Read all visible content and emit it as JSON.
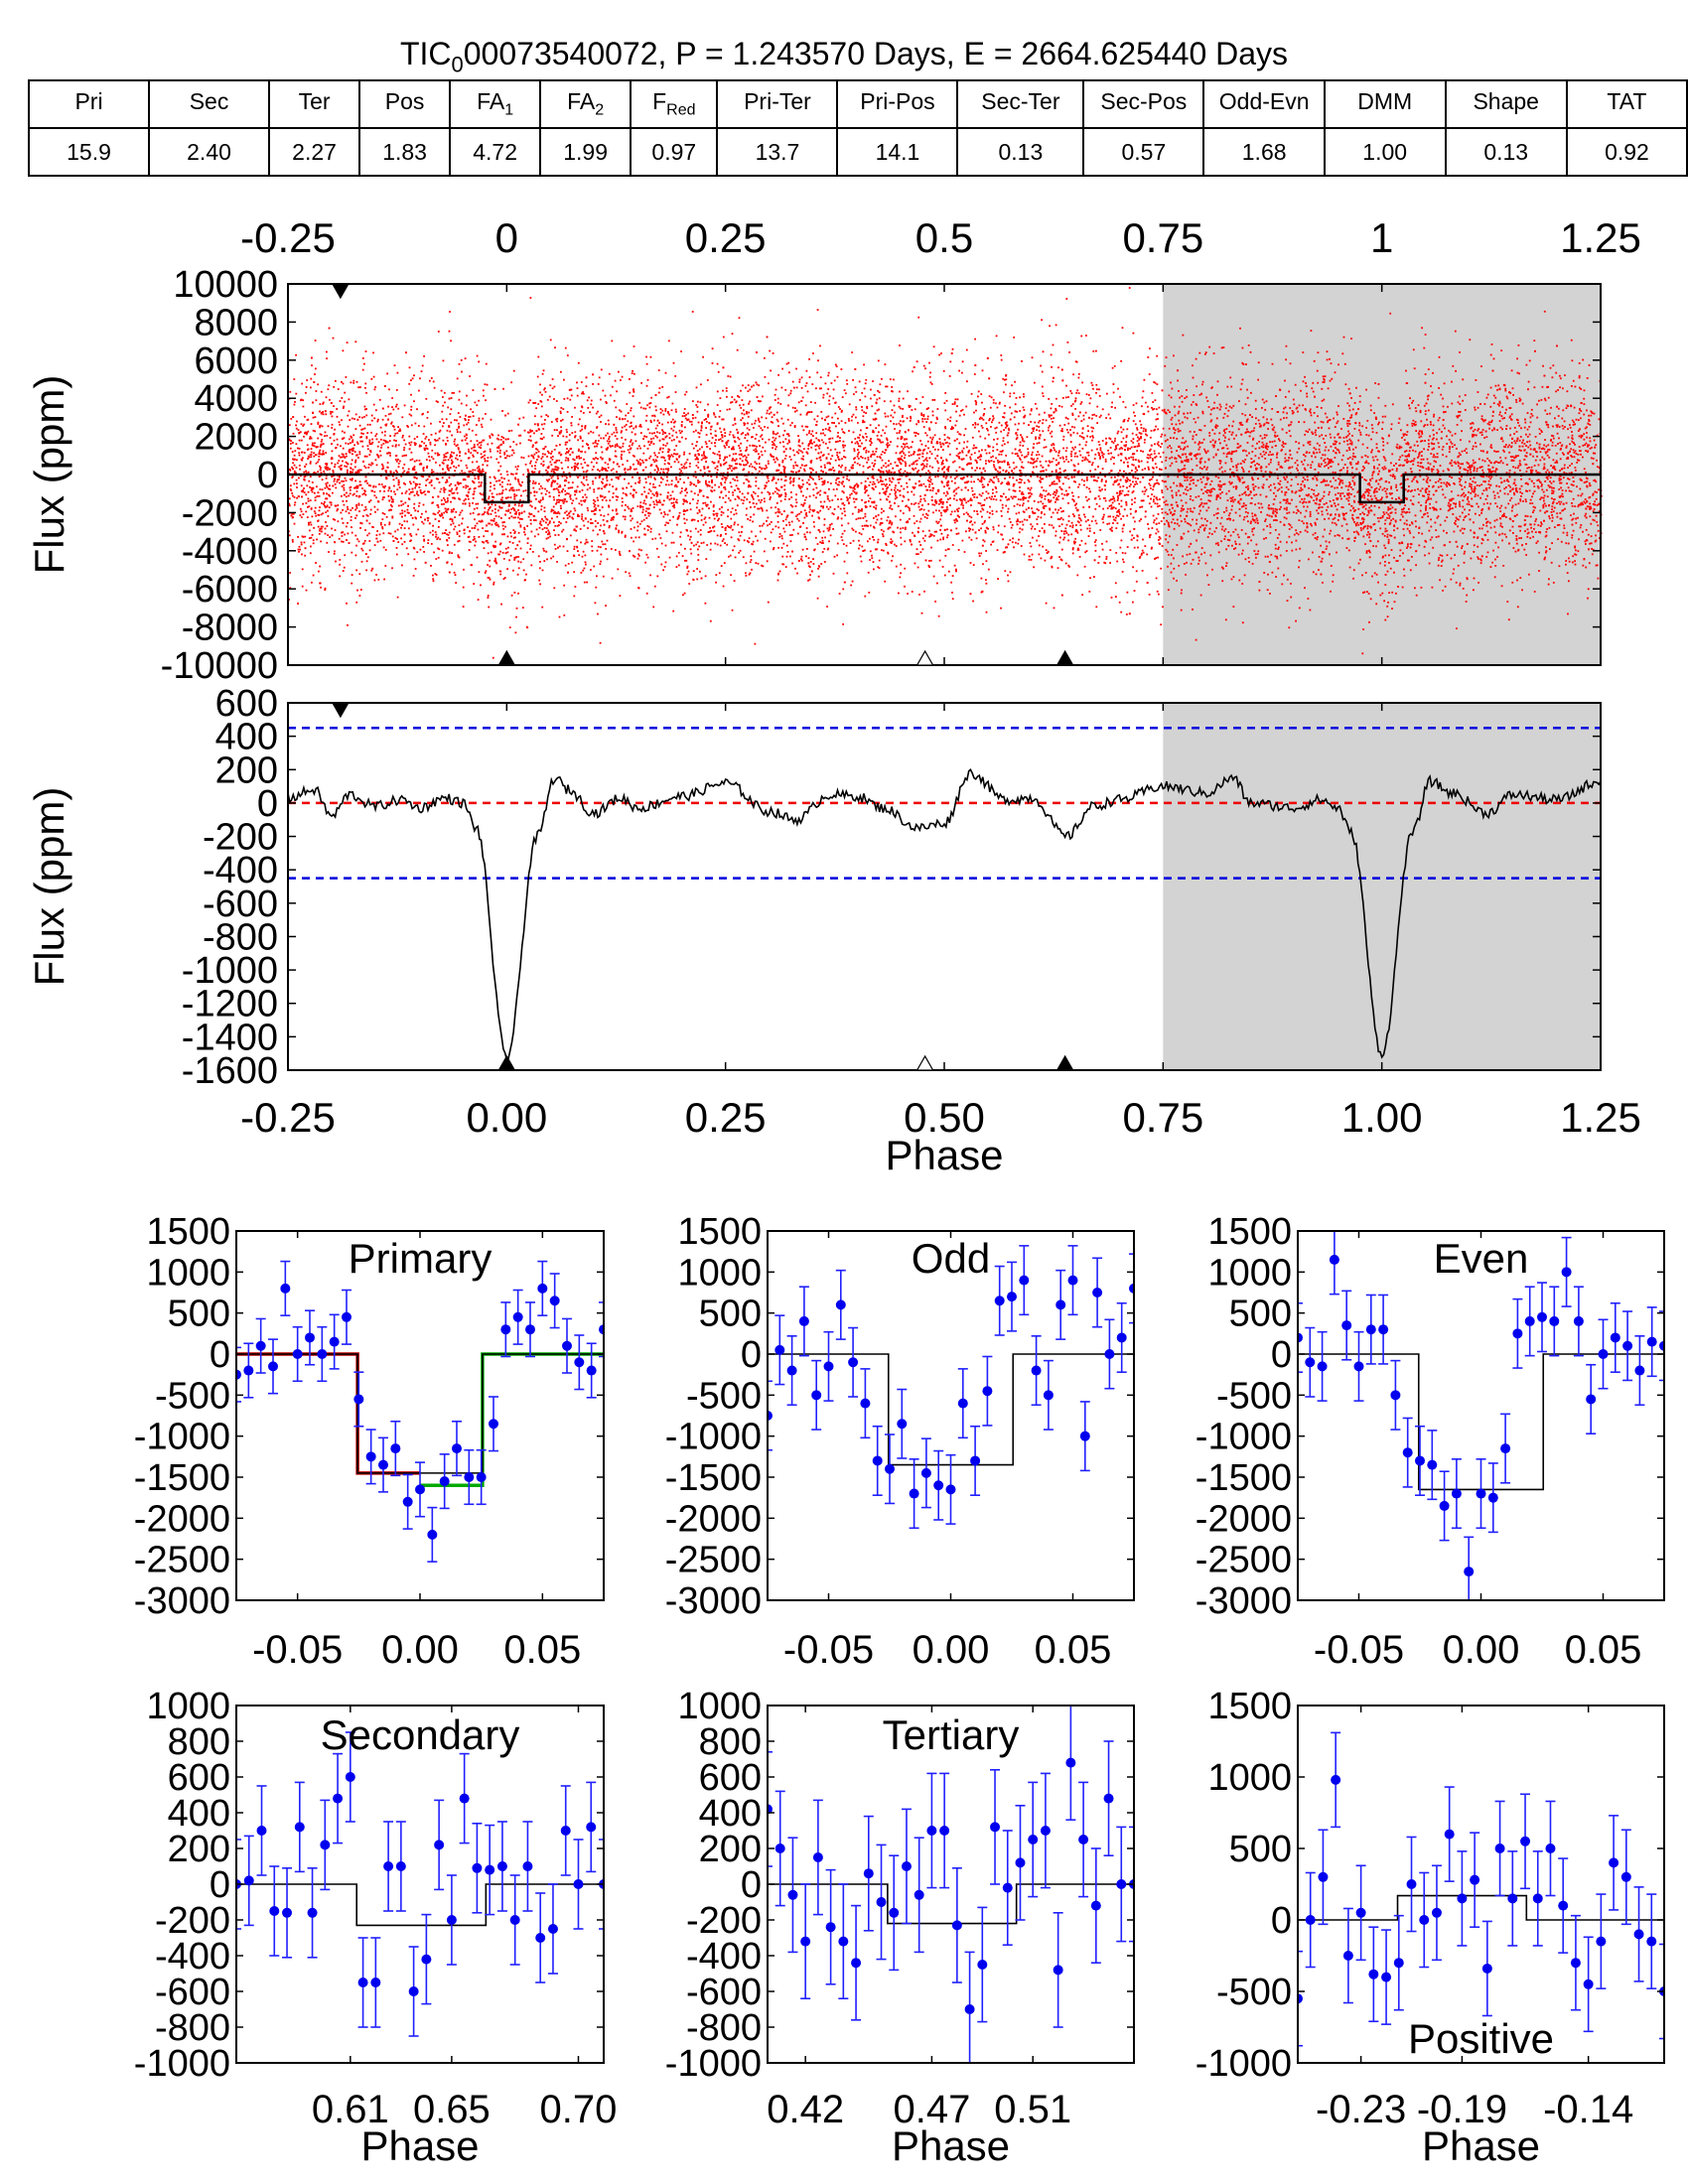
{
  "header": {
    "title_prefix": "TIC",
    "title_sub": "0",
    "title_suffix": "00073540072, P = 1.243570 Days, E = 2664.625440 Days"
  },
  "table": {
    "columns": [
      {
        "label": "Pri",
        "sub": ""
      },
      {
        "label": "Sec",
        "sub": ""
      },
      {
        "label": "Ter",
        "sub": ""
      },
      {
        "label": "Pos",
        "sub": ""
      },
      {
        "label": "FA",
        "sub": "1"
      },
      {
        "label": "FA",
        "sub": "2"
      },
      {
        "label": "F",
        "sub": "Red"
      },
      {
        "label": "Pri-Ter",
        "sub": ""
      },
      {
        "label": "Pri-Pos",
        "sub": ""
      },
      {
        "label": "Sec-Ter",
        "sub": ""
      },
      {
        "label": "Sec-Pos",
        "sub": ""
      },
      {
        "label": "Odd-Evn",
        "sub": ""
      },
      {
        "label": "DMM",
        "sub": ""
      },
      {
        "label": "Shape",
        "sub": ""
      },
      {
        "label": "TAT",
        "sub": ""
      }
    ],
    "values": [
      "15.9",
      "2.40",
      "2.27",
      "1.83",
      "4.72",
      "1.99",
      "0.97",
      "13.7",
      "14.1",
      "0.13",
      "0.57",
      "1.68",
      "1.00",
      "0.13",
      "0.92"
    ]
  },
  "chart_data": [
    {
      "id": "full",
      "type": "scatter",
      "ylabel": "Flux (ppm)",
      "xlim": [
        -0.25,
        1.25
      ],
      "ylim": [
        -10000,
        10000
      ],
      "top_ticks": [
        "-0.25",
        "0",
        "0.25",
        "0.5",
        "0.75",
        "1",
        "1.25"
      ],
      "top_tick_values": [
        -0.25,
        0,
        0.25,
        0.5,
        0.75,
        1,
        1.25
      ],
      "yticks": [
        10000,
        8000,
        6000,
        4000,
        2000,
        0,
        -2000,
        -4000,
        -6000,
        -8000,
        -10000
      ],
      "shaded_from": 0.75,
      "model_depth": -1450,
      "transit_half_width": 0.025,
      "scatter_sigma": 2600,
      "scatter_count": 12000,
      "markers": {
        "filled_bottom": [
          0.0,
          0.638
        ],
        "open_bottom": [
          0.478
        ],
        "filled_top": [
          -0.19
        ]
      }
    },
    {
      "id": "binned",
      "type": "line",
      "ylabel": "Flux (ppm)",
      "xlabel": "Phase",
      "xlim": [
        -0.25,
        1.25
      ],
      "ylim": [
        -1600,
        600
      ],
      "xticks": [
        "-0.25",
        "0.00",
        "0.25",
        "0.50",
        "0.75",
        "1.00",
        "1.25"
      ],
      "xtick_values": [
        -0.25,
        0,
        0.25,
        0.5,
        0.75,
        1.0,
        1.25
      ],
      "yticks": [
        600,
        400,
        200,
        0,
        -200,
        -400,
        -600,
        -800,
        -1000,
        -1200,
        -1400,
        -1600
      ],
      "blue_lines": [
        450,
        -450
      ],
      "red_line": 0,
      "shaded_from": 0.75,
      "trend_x": [
        -0.25,
        -0.22,
        -0.2,
        -0.18,
        -0.15,
        -0.12,
        -0.1,
        -0.07,
        -0.05,
        -0.035,
        0.0,
        0.035,
        0.055,
        0.07,
        0.1,
        0.13,
        0.15,
        0.2,
        0.25,
        0.3,
        0.33,
        0.37,
        0.4,
        0.43,
        0.47,
        0.5,
        0.53,
        0.57,
        0.6,
        0.64,
        0.67,
        0.7,
        0.75,
        0.8,
        0.83,
        0.85,
        0.9,
        0.93,
        0.95,
        0.965,
        1.0,
        1.035,
        1.055,
        1.08,
        1.12,
        1.15,
        1.2,
        1.25
      ],
      "trend_y": [
        30,
        80,
        -80,
        50,
        -20,
        20,
        -30,
        30,
        0,
        -150,
        -1520,
        -200,
        150,
        80,
        -60,
        30,
        -30,
        40,
        120,
        -50,
        -100,
        50,
        40,
        -30,
        -150,
        -120,
        180,
        20,
        30,
        -200,
        -20,
        20,
        100,
        60,
        150,
        0,
        -30,
        20,
        -30,
        -180,
        -1500,
        -180,
        130,
        60,
        -60,
        50,
        20,
        130
      ],
      "markers": {
        "filled_bottom": [
          0.0,
          0.638
        ],
        "open_bottom": [
          0.478
        ],
        "filled_top": [
          -0.19
        ]
      }
    },
    {
      "id": "primary",
      "type": "scatter",
      "title": "Primary",
      "xlim": [
        -0.075,
        0.075
      ],
      "ylim": [
        -3000,
        1500
      ],
      "xticks": [
        "-0.05",
        "0.00",
        "0.05"
      ],
      "xtick_values": [
        -0.05,
        0,
        0.05
      ],
      "yticks": [
        1500,
        1000,
        500,
        0,
        -500,
        -1000,
        -1500,
        -2000,
        -2500,
        -3000
      ],
      "x": [
        -0.075,
        -0.07,
        -0.065,
        -0.06,
        -0.055,
        -0.05,
        -0.045,
        -0.04,
        -0.035,
        -0.03,
        -0.025,
        -0.02,
        -0.015,
        -0.01,
        -0.005,
        0.0,
        0.005,
        0.01,
        0.015,
        0.02,
        0.025,
        0.03,
        0.035,
        0.04,
        0.045,
        0.05,
        0.055,
        0.06,
        0.065,
        0.07,
        0.075
      ],
      "y": [
        -250,
        -200,
        100,
        -150,
        800,
        0,
        200,
        0,
        150,
        450,
        -550,
        -1250,
        -1350,
        -1150,
        -1800,
        -1650,
        -2200,
        -1550,
        -1150,
        -1500,
        -1500,
        -850,
        300,
        450,
        300,
        800,
        650,
        100,
        -100,
        -200,
        300
      ],
      "err": [
        330,
        330,
        330,
        330,
        330,
        330,
        330,
        330,
        330,
        330,
        330,
        330,
        330,
        330,
        330,
        330,
        330,
        330,
        330,
        330,
        330,
        330,
        330,
        330,
        330,
        330,
        330,
        330,
        330,
        330,
        330
      ],
      "model": {
        "depth": -1450,
        "half_width": 0.0255
      },
      "model_left": {
        "depth": -1450,
        "color": "#bb0000"
      },
      "model_right": {
        "depth": -1600,
        "color": "#00aa00"
      }
    },
    {
      "id": "odd",
      "type": "scatter",
      "title": "Odd",
      "xlim": [
        -0.075,
        0.075
      ],
      "ylim": [
        -3000,
        1500
      ],
      "xticks": [
        "-0.05",
        "0.00",
        "0.05"
      ],
      "xtick_values": [
        -0.05,
        0,
        0.05
      ],
      "yticks": [
        1500,
        1000,
        500,
        0,
        -500,
        -1000,
        -1500,
        -2000,
        -2500,
        -3000
      ],
      "x": [
        -0.075,
        -0.07,
        -0.065,
        -0.06,
        -0.055,
        -0.05,
        -0.045,
        -0.04,
        -0.035,
        -0.03,
        -0.025,
        -0.02,
        -0.015,
        -0.01,
        -0.005,
        0.0,
        0.005,
        0.01,
        0.015,
        0.02,
        0.025,
        0.03,
        0.035,
        0.04,
        0.045,
        0.05,
        0.055,
        0.06,
        0.065,
        0.07,
        0.075
      ],
      "y": [
        -750,
        50,
        -200,
        400,
        -500,
        -150,
        600,
        -100,
        -600,
        -1300,
        -1400,
        -850,
        -1700,
        -1450,
        -1600,
        -1650,
        -600,
        -1300,
        -450,
        650,
        700,
        900,
        -200,
        -500,
        600,
        900,
        -1000,
        750,
        0,
        200,
        800
      ],
      "err": [
        420,
        420,
        420,
        420,
        420,
        420,
        420,
        420,
        420,
        420,
        420,
        420,
        420,
        420,
        420,
        420,
        420,
        420,
        420,
        420,
        420,
        420,
        420,
        420,
        420,
        420,
        420,
        420,
        420,
        420,
        420
      ],
      "model": {
        "depth": -1350,
        "half_width": 0.0255
      }
    },
    {
      "id": "even",
      "type": "scatter",
      "title": "Even",
      "xlim": [
        -0.075,
        0.075
      ],
      "ylim": [
        -3000,
        1500
      ],
      "xticks": [
        "-0.05",
        "0.00",
        "0.05"
      ],
      "xtick_values": [
        -0.05,
        0,
        0.05
      ],
      "yticks": [
        1500,
        1000,
        500,
        0,
        -500,
        -1000,
        -1500,
        -2000,
        -2500,
        -3000
      ],
      "x": [
        -0.075,
        -0.07,
        -0.065,
        -0.06,
        -0.055,
        -0.05,
        -0.045,
        -0.04,
        -0.035,
        -0.03,
        -0.025,
        -0.02,
        -0.015,
        -0.01,
        -0.005,
        0.0,
        0.005,
        0.01,
        0.015,
        0.02,
        0.025,
        0.03,
        0.035,
        0.04,
        0.045,
        0.05,
        0.055,
        0.06,
        0.065,
        0.07,
        0.075
      ],
      "y": [
        200,
        -100,
        -150,
        1150,
        350,
        -150,
        300,
        300,
        -500,
        -1200,
        -1300,
        -1350,
        -1850,
        -1700,
        -2650,
        -1700,
        -1750,
        -1150,
        250,
        400,
        450,
        400,
        1000,
        400,
        -550,
        0,
        200,
        100,
        -200,
        150,
        100
      ],
      "err": [
        420,
        420,
        420,
        420,
        420,
        420,
        420,
        420,
        420,
        420,
        420,
        420,
        420,
        420,
        420,
        420,
        420,
        420,
        420,
        420,
        420,
        420,
        420,
        420,
        420,
        420,
        420,
        420,
        420,
        420,
        420
      ],
      "model": {
        "depth": -1650,
        "half_width": 0.0255
      }
    },
    {
      "id": "secondary",
      "type": "scatter",
      "title": "Secondary",
      "xlabel": "Phase",
      "xlim": [
        0.565,
        0.71
      ],
      "ylim": [
        -1000,
        1000
      ],
      "xticks": [
        "0.61",
        "0.65",
        "0.70"
      ],
      "xtick_values": [
        0.61,
        0.65,
        0.7
      ],
      "yticks": [
        1000,
        800,
        600,
        400,
        200,
        0,
        -200,
        -400,
        -600,
        -800,
        -1000
      ],
      "x": [
        0.565,
        0.57,
        0.575,
        0.58,
        0.585,
        0.59,
        0.595,
        0.6,
        0.605,
        0.61,
        0.615,
        0.62,
        0.625,
        0.63,
        0.635,
        0.64,
        0.645,
        0.65,
        0.655,
        0.66,
        0.665,
        0.67,
        0.675,
        0.68,
        0.685,
        0.69,
        0.695,
        0.7,
        0.705,
        0.71
      ],
      "y": [
        0,
        20,
        300,
        -150,
        -160,
        320,
        -160,
        220,
        480,
        600,
        -550,
        -550,
        100,
        100,
        -600,
        -420,
        220,
        -200,
        480,
        90,
        80,
        100,
        -200,
        100,
        -300,
        -250,
        300,
        0,
        320,
        0
      ],
      "err": [
        250,
        250,
        250,
        250,
        250,
        250,
        250,
        250,
        250,
        250,
        250,
        250,
        250,
        250,
        250,
        250,
        250,
        250,
        250,
        250,
        250,
        250,
        250,
        250,
        250,
        250,
        250,
        250,
        250,
        250
      ],
      "model": {
        "depth": -230,
        "center": 0.638,
        "half_width": 0.0255
      }
    },
    {
      "id": "tertiary",
      "type": "scatter",
      "title": "Tertiary",
      "xlabel": "Phase",
      "xlim": [
        0.405,
        0.55
      ],
      "ylim": [
        -1000,
        1000
      ],
      "xticks": [
        "0.42",
        "0.47",
        "0.51"
      ],
      "xtick_values": [
        0.42,
        0.47,
        0.51
      ],
      "yticks": [
        1000,
        800,
        600,
        400,
        200,
        0,
        -200,
        -400,
        -600,
        -800,
        -1000
      ],
      "x": [
        0.405,
        0.41,
        0.415,
        0.42,
        0.425,
        0.43,
        0.435,
        0.44,
        0.445,
        0.45,
        0.455,
        0.46,
        0.465,
        0.47,
        0.475,
        0.48,
        0.485,
        0.49,
        0.495,
        0.5,
        0.505,
        0.51,
        0.515,
        0.52,
        0.525,
        0.53,
        0.535,
        0.54,
        0.545,
        0.55
      ],
      "y": [
        420,
        200,
        -60,
        -320,
        150,
        -240,
        -320,
        -440,
        60,
        -100,
        -160,
        100,
        -60,
        300,
        300,
        -230,
        -700,
        -450,
        320,
        -20,
        120,
        250,
        300,
        -480,
        680,
        250,
        -120,
        480,
        0,
        0
      ],
      "err": [
        320,
        320,
        320,
        320,
        320,
        320,
        320,
        320,
        320,
        320,
        320,
        320,
        320,
        320,
        320,
        320,
        320,
        320,
        320,
        320,
        320,
        320,
        320,
        320,
        320,
        320,
        320,
        320,
        320,
        320
      ],
      "model": {
        "depth": -220,
        "center": 0.478,
        "half_width": 0.0255
      }
    },
    {
      "id": "positive",
      "type": "scatter",
      "title": "Positive",
      "xlabel": "Phase",
      "xlim": [
        -0.255,
        -0.11
      ],
      "ylim": [
        -1000,
        1500
      ],
      "xticks": [
        "-0.23",
        "-0.19",
        "-0.14"
      ],
      "xtick_values": [
        -0.23,
        -0.19,
        -0.14
      ],
      "yticks": [
        1500,
        1000,
        500,
        0,
        -500,
        -1000
      ],
      "x": [
        -0.255,
        -0.25,
        -0.245,
        -0.24,
        -0.235,
        -0.23,
        -0.225,
        -0.22,
        -0.215,
        -0.21,
        -0.205,
        -0.2,
        -0.195,
        -0.19,
        -0.185,
        -0.18,
        -0.175,
        -0.17,
        -0.165,
        -0.16,
        -0.155,
        -0.15,
        -0.145,
        -0.14,
        -0.135,
        -0.13,
        -0.125,
        -0.12,
        -0.115,
        -0.11
      ],
      "y": [
        -550,
        0,
        300,
        980,
        -250,
        50,
        -380,
        -400,
        -300,
        250,
        0,
        50,
        600,
        150,
        280,
        -340,
        500,
        150,
        550,
        150,
        500,
        100,
        -300,
        -450,
        -150,
        400,
        300,
        -100,
        -150,
        -500
      ],
      "err": [
        330,
        330,
        330,
        330,
        330,
        330,
        330,
        330,
        330,
        330,
        330,
        330,
        330,
        330,
        330,
        330,
        330,
        330,
        330,
        330,
        330,
        330,
        330,
        330,
        330,
        330,
        330,
        330,
        330,
        330
      ],
      "model": {
        "depth": 170,
        "center": -0.19,
        "half_width": 0.0255
      }
    }
  ]
}
